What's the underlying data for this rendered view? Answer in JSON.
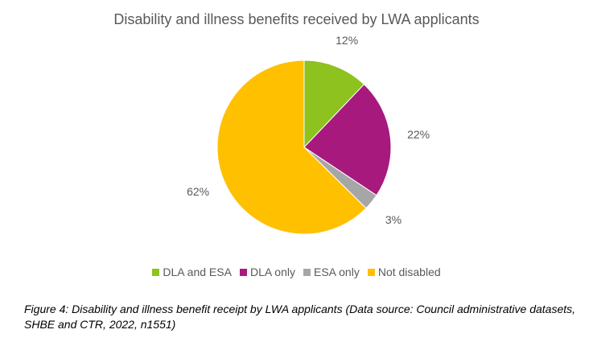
{
  "chart_data": {
    "type": "pie",
    "title": "Disability and illness benefits received by LWA applicants",
    "slices": [
      {
        "label": "DLA and ESA",
        "value": 12,
        "value_label": "12%",
        "color": "#8DC21F"
      },
      {
        "label": "DLA only",
        "value": 22,
        "value_label": "22%",
        "color": "#A8197E"
      },
      {
        "label": "ESA only",
        "value": 3,
        "value_label": "3%",
        "color": "#A6A6A6"
      },
      {
        "label": "Not disabled",
        "value": 62,
        "value_label": "62%",
        "color": "#FFC000"
      }
    ],
    "legend_position": "bottom"
  },
  "caption": "Figure 4: Disability and illness benefit receipt by LWA applicants (Data source: Council administrative datasets, SHBE and CTR, 2022, n1551)"
}
